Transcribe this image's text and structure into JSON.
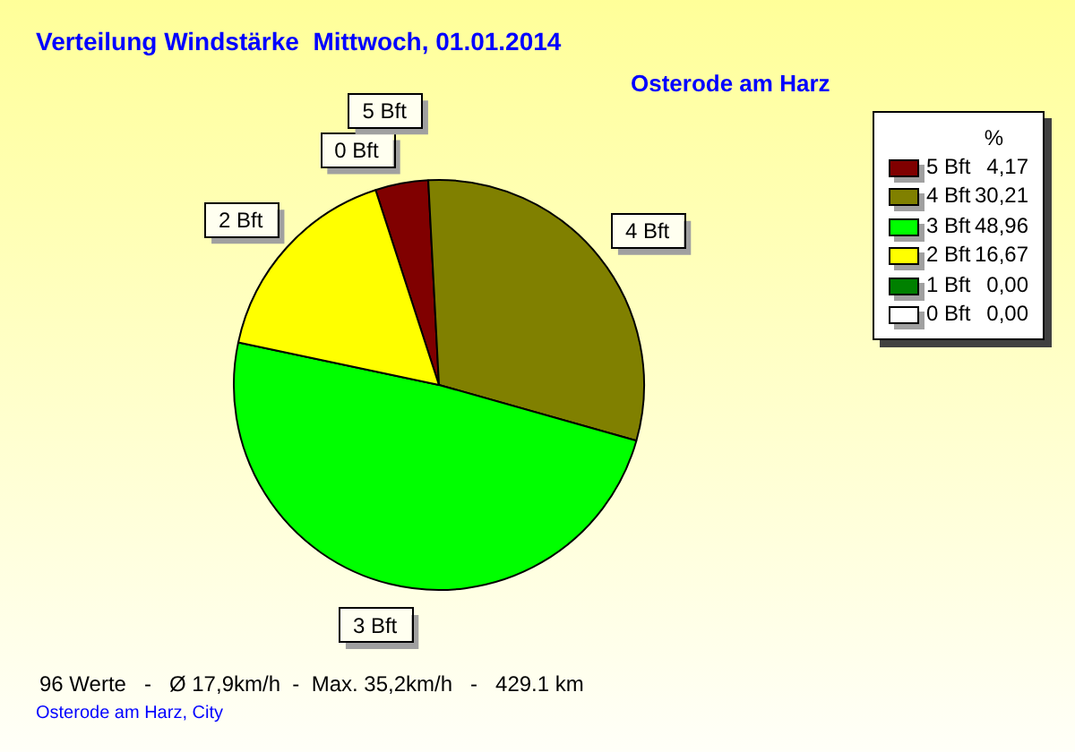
{
  "chart_data": {
    "type": "pie",
    "title": "Verteilung Windstärke  Mittwoch, 01.01.2014",
    "subtitle": "Osterode am Harz",
    "legend_title": "%",
    "categories": [
      "5 Bft",
      "4 Bft",
      "3 Bft",
      "2 Bft",
      "1 Bft",
      "0 Bft"
    ],
    "values": [
      4.17,
      30.21,
      48.96,
      16.67,
      0,
      0
    ],
    "colors": [
      "#800000",
      "#808000",
      "#00ff00",
      "#ffff00",
      "#008000",
      "#ffffff"
    ],
    "value_labels": [
      "4,17",
      "30,21",
      "48,96",
      "16,67",
      "0,00",
      "0,00"
    ],
    "legend": "top right",
    "annotations": [
      "96 Werte   -   Ø 17,9km/h  -  Max. 35,2km/h   -   429.1 km",
      "Osterode am Harz, City"
    ]
  }
}
